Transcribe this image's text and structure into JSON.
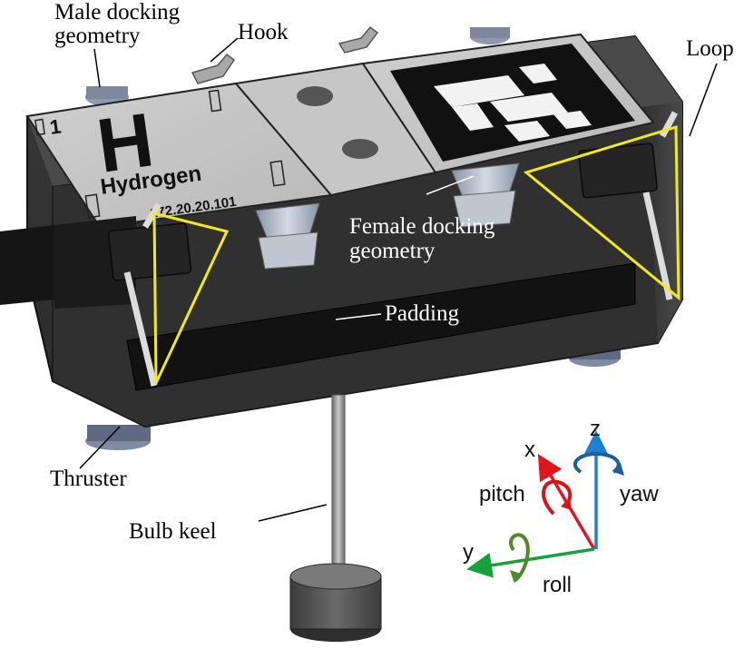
{
  "labels": {
    "male_docking": "Male docking",
    "male_docking_2": "geometry",
    "hook": "Hook",
    "loop": "Loop",
    "female_docking": "Female docking",
    "female_docking_2": "geometry",
    "padding": "Padding",
    "thruster": "Thruster",
    "bulb_keel": "Bulb keel"
  },
  "plate": {
    "number": "1",
    "letter": "H",
    "name": "Hydrogen",
    "ip": "172.20.20.101"
  },
  "axes": {
    "x": "x",
    "y": "y",
    "z": "z",
    "pitch": "pitch",
    "yaw": "yaw",
    "roll": "roll"
  },
  "colors": {
    "x_axis": "#e0161e",
    "y_axis": "#14a33a",
    "z_axis": "#1f7fd0",
    "pitch_arrow": "#d81418",
    "yaw_arrow": "#1e5fa0",
    "roll_arrow": "#4f8a2b",
    "loop": "#f2ea1a"
  }
}
